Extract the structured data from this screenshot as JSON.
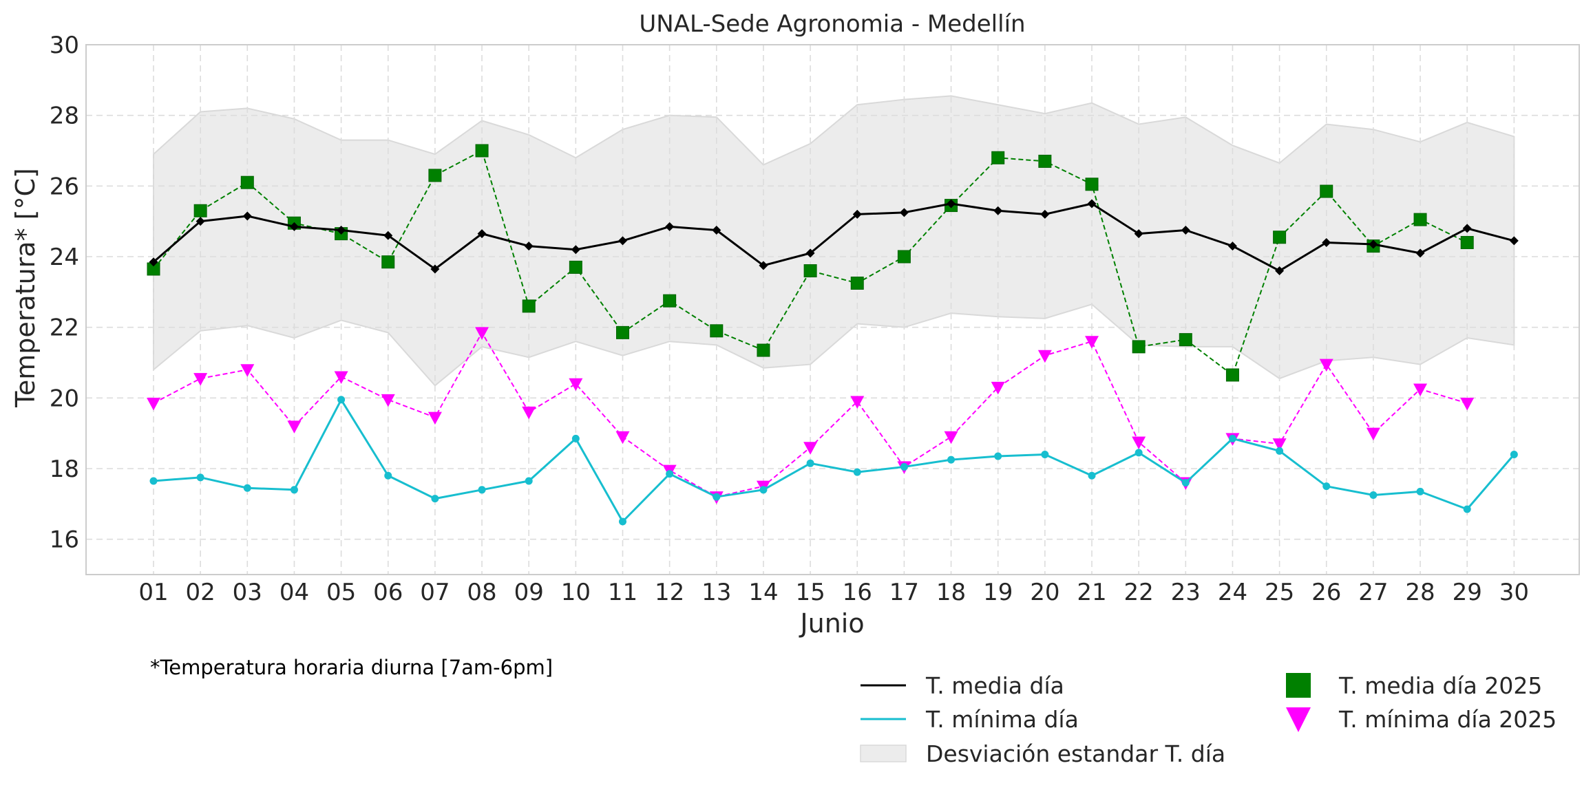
{
  "chart_data": {
    "type": "line",
    "title": "UNAL-Sede Agronomia - Medellín",
    "xlabel": "Junio",
    "ylabel": "Temperatura* [°C]",
    "ylim": [
      15,
      30
    ],
    "yticks": [
      16,
      18,
      20,
      22,
      24,
      26,
      28,
      30
    ],
    "grid": true,
    "legend_position": "bottom-right",
    "footnote": "*Temperatura horaria diurna [7am-6pm]",
    "categories": [
      "01",
      "02",
      "03",
      "04",
      "05",
      "06",
      "07",
      "08",
      "09",
      "10",
      "11",
      "12",
      "13",
      "14",
      "15",
      "16",
      "17",
      "18",
      "19",
      "20",
      "21",
      "22",
      "23",
      "24",
      "25",
      "26",
      "27",
      "28",
      "29",
      "30"
    ],
    "band": {
      "name": "Desviación estandar T. día",
      "color": "#ececec",
      "edge_color": "#d9d9d9",
      "upper": [
        26.9,
        28.1,
        28.2,
        27.9,
        27.3,
        27.3,
        26.9,
        27.85,
        27.45,
        26.8,
        27.6,
        28.0,
        27.95,
        26.6,
        27.2,
        28.3,
        28.45,
        28.55,
        28.3,
        28.05,
        28.35,
        27.75,
        27.95,
        27.15,
        26.65,
        27.75,
        27.6,
        27.25,
        27.8,
        27.4
      ],
      "lower": [
        20.8,
        21.9,
        22.05,
        21.7,
        22.2,
        21.85,
        20.35,
        21.45,
        21.15,
        21.6,
        21.2,
        21.6,
        21.5,
        20.85,
        20.95,
        22.1,
        22.0,
        22.4,
        22.3,
        22.25,
        22.65,
        21.5,
        21.45,
        21.45,
        20.55,
        21.05,
        21.15,
        20.95,
        21.7,
        21.5
      ]
    },
    "series": [
      {
        "name": "T. media día",
        "color": "#000000",
        "style": "solid",
        "marker": "diamond",
        "values": [
          23.85,
          25.0,
          25.15,
          24.85,
          24.75,
          24.6,
          23.65,
          24.65,
          24.3,
          24.2,
          24.45,
          24.85,
          24.75,
          23.75,
          24.1,
          25.2,
          25.25,
          25.5,
          25.3,
          25.2,
          25.5,
          24.65,
          24.75,
          24.3,
          23.6,
          24.4,
          24.35,
          24.1,
          24.8,
          24.45
        ]
      },
      {
        "name": "T. mínima día",
        "color": "#17becf",
        "style": "solid",
        "marker": "dot",
        "values": [
          17.65,
          17.75,
          17.45,
          17.4,
          19.95,
          17.8,
          17.15,
          17.4,
          17.65,
          18.85,
          16.5,
          17.85,
          17.2,
          17.4,
          18.15,
          17.9,
          18.05,
          18.25,
          18.35,
          18.4,
          17.8,
          18.45,
          17.6,
          18.85,
          18.5,
          17.5,
          17.25,
          17.35,
          16.85,
          18.4
        ]
      },
      {
        "name": "T. media día 2025",
        "color": "#008000",
        "style": "dashed",
        "marker": "square",
        "values": [
          23.65,
          25.3,
          26.1,
          24.95,
          24.65,
          23.85,
          26.3,
          27.0,
          22.6,
          23.7,
          21.85,
          22.75,
          21.9,
          21.35,
          23.6,
          23.25,
          24.0,
          25.45,
          26.8,
          26.7,
          26.05,
          21.45,
          21.65,
          20.65,
          24.55,
          25.85,
          24.3,
          25.05,
          24.4,
          null
        ]
      },
      {
        "name": "T. mínima día 2025",
        "color": "#ff00ff",
        "style": "dashed",
        "marker": "triangle-down",
        "values": [
          19.85,
          20.55,
          20.8,
          19.2,
          20.6,
          19.95,
          19.45,
          21.85,
          19.6,
          20.4,
          18.9,
          17.95,
          17.2,
          17.5,
          18.6,
          19.9,
          18.05,
          18.9,
          20.3,
          21.2,
          21.6,
          18.75,
          17.6,
          18.85,
          18.7,
          20.95,
          19.0,
          20.25,
          19.85,
          null
        ]
      }
    ]
  }
}
